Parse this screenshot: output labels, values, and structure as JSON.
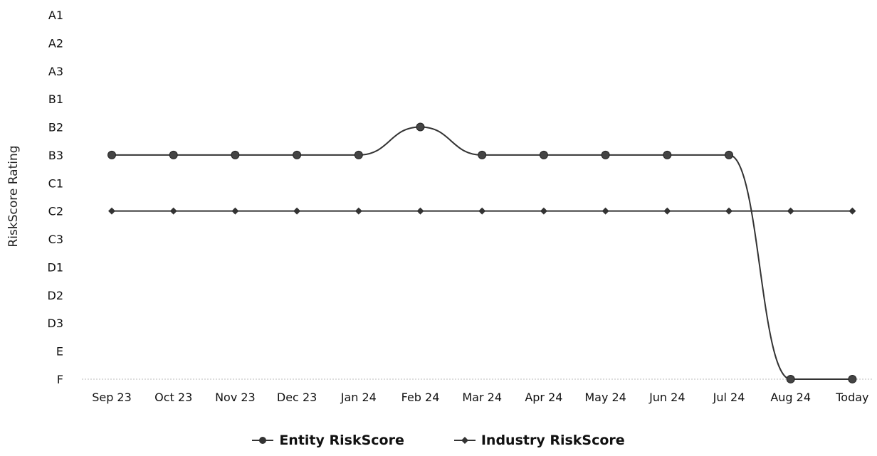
{
  "chart_data": {
    "type": "line",
    "ylabel": "RiskScore Rating",
    "xlabel": "",
    "categories": [
      "Sep 23",
      "Oct 23",
      "Nov 23",
      "Dec 23",
      "Jan 24",
      "Feb 24",
      "Mar 24",
      "Apr 24",
      "May 24",
      "Jun 24",
      "Jul 24",
      "Aug 24",
      "Today"
    ],
    "y_categories": [
      "A1",
      "A2",
      "A3",
      "B1",
      "B2",
      "B3",
      "C1",
      "C2",
      "C3",
      "D1",
      "D2",
      "D3",
      "E",
      "F"
    ],
    "series": [
      {
        "name": "Entity RiskScore",
        "values": [
          "B3",
          "B3",
          "B3",
          "B3",
          "B3",
          "B2",
          "B3",
          "B3",
          "B3",
          "B3",
          "B3",
          "F",
          null
        ],
        "marker": "circle",
        "color": "#333333"
      },
      {
        "name": "Industry RiskScore",
        "values": [
          "C2",
          "C2",
          "C2",
          "C2",
          "C2",
          "C2",
          "C2",
          "C2",
          "C2",
          "C2",
          "C2",
          "C2",
          "C2"
        ],
        "marker": "diamond",
        "color": "#333333"
      }
    ],
    "entity_today_value": "F",
    "legend_position": "bottom-center",
    "grid": false
  }
}
